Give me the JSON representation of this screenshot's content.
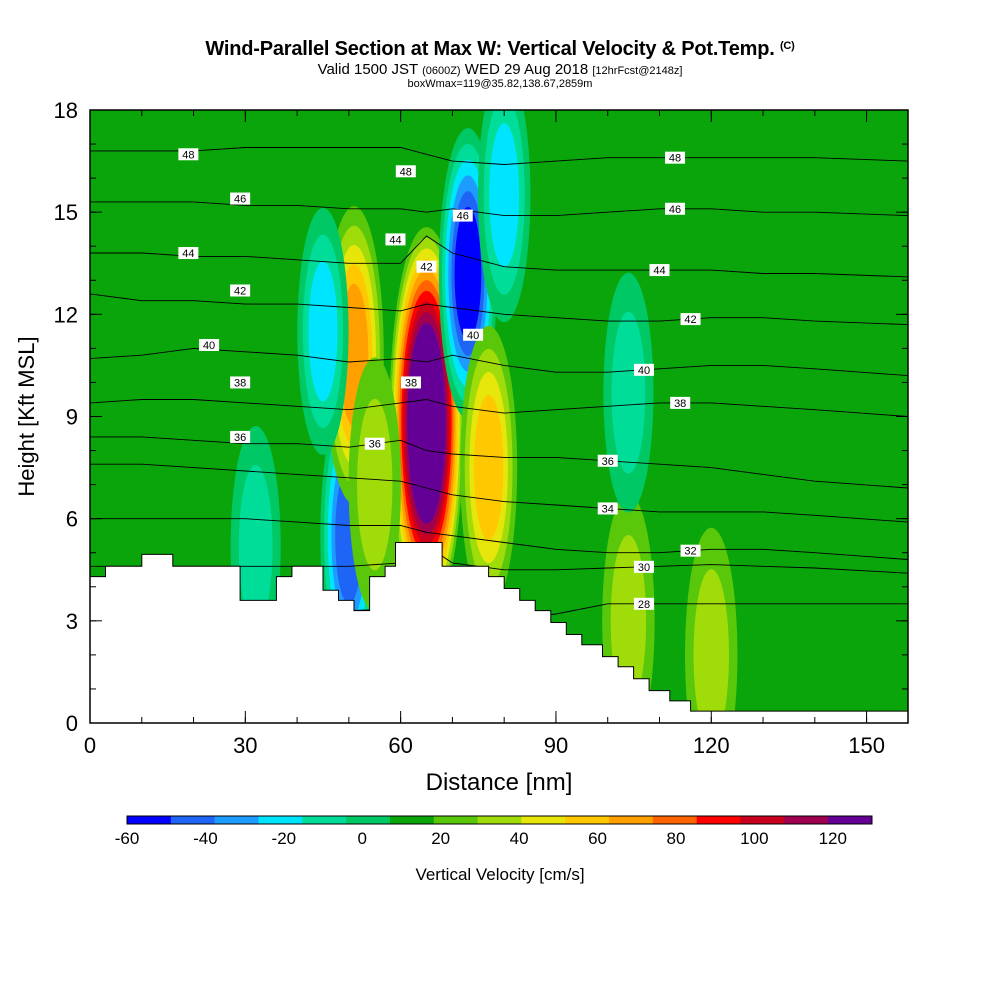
{
  "header": {
    "title": "Wind-Parallel Section at Max W: Vertical Velocity & Pot.Temp.",
    "title_mark": "(C)",
    "subtitle_valid": "Valid 1500 JST",
    "subtitle_utc": "(0600Z)",
    "subtitle_date": "WED 29 Aug 2018",
    "subtitle_fcst": "[12hrFcst@2148z]",
    "subtitle_box": "boxWmax=119@35.82,138.67,2859m"
  },
  "colors": {
    "scale": [
      "#0000ff",
      "#1e64f5",
      "#1e9bff",
      "#00e5ff",
      "#00dd99",
      "#00c864",
      "#0aa50a",
      "#5ac80a",
      "#a0dc0a",
      "#e6e60a",
      "#ffc800",
      "#ffa000",
      "#ff6400",
      "#ff0000",
      "#c8001e",
      "#a00050",
      "#640096"
    ],
    "terrain": "#ffffff",
    "contour": "#000000"
  },
  "chart_data": {
    "type": "heatmap",
    "xlabel": "Distance [nm]",
    "ylabel": "Height [Kft MSL]",
    "xlim": [
      0,
      158
    ],
    "ylim": [
      0,
      18
    ],
    "xticks": [
      "0",
      "30",
      "60",
      "90",
      "120",
      "150"
    ],
    "yticks": [
      "0",
      "3",
      "6",
      "9",
      "12",
      "15",
      "18"
    ],
    "colorbar": {
      "label": "Vertical Velocity [cm/s]",
      "levels": [
        -60,
        -50,
        -40,
        -30,
        -20,
        -10,
        0,
        10,
        20,
        30,
        40,
        50,
        60,
        70,
        80,
        90,
        100,
        110,
        120,
        130
      ],
      "tick_labels": [
        "-60",
        "-40",
        "-20",
        "0",
        "20",
        "40",
        "60",
        "80",
        "100",
        "120"
      ]
    },
    "background_w": 5,
    "w_features": [
      {
        "x": 65,
        "y": 8.8,
        "w": 120
      },
      {
        "x": 73,
        "y": 13.2,
        "w": -50
      },
      {
        "x": 50,
        "y": 5.5,
        "w": -45
      },
      {
        "x": 51,
        "y": 10.8,
        "w": 55
      },
      {
        "x": 77,
        "y": 7.5,
        "w": 45
      },
      {
        "x": 104,
        "y": 3.0,
        "w": 25
      },
      {
        "x": 120,
        "y": 2.0,
        "w": 25
      },
      {
        "x": 104,
        "y": 9.7,
        "w": -15
      },
      {
        "x": 32,
        "y": 5.2,
        "w": -15
      },
      {
        "x": 45,
        "y": 11.5,
        "w": -20
      },
      {
        "x": 55,
        "y": 7.0,
        "w": 25
      },
      {
        "x": 80,
        "y": 15.5,
        "w": -25
      },
      {
        "x": 143,
        "y": 1.0,
        "w": 5
      }
    ],
    "terrain": [
      [
        0,
        4.3
      ],
      [
        3,
        4.3
      ],
      [
        3,
        4.6
      ],
      [
        10,
        4.6
      ],
      [
        10,
        4.95
      ],
      [
        16,
        4.95
      ],
      [
        16,
        4.6
      ],
      [
        29,
        4.6
      ],
      [
        29,
        3.6
      ],
      [
        36,
        3.6
      ],
      [
        36,
        4.3
      ],
      [
        39,
        4.3
      ],
      [
        39,
        4.6
      ],
      [
        45,
        4.6
      ],
      [
        45,
        3.9
      ],
      [
        48,
        3.9
      ],
      [
        48,
        3.6
      ],
      [
        51,
        3.6
      ],
      [
        51,
        3.3
      ],
      [
        54,
        3.3
      ],
      [
        54,
        4.3
      ],
      [
        57,
        4.3
      ],
      [
        57,
        4.6
      ],
      [
        59,
        4.6
      ],
      [
        59,
        5.3
      ],
      [
        68,
        5.3
      ],
      [
        68,
        4.6
      ],
      [
        77,
        4.6
      ],
      [
        77,
        4.3
      ],
      [
        80,
        4.3
      ],
      [
        80,
        3.95
      ],
      [
        83,
        3.95
      ],
      [
        83,
        3.6
      ],
      [
        86,
        3.6
      ],
      [
        86,
        3.3
      ],
      [
        89,
        3.3
      ],
      [
        89,
        2.95
      ],
      [
        92,
        2.95
      ],
      [
        92,
        2.6
      ],
      [
        95,
        2.6
      ],
      [
        95,
        2.3
      ],
      [
        99,
        2.3
      ],
      [
        99,
        1.95
      ],
      [
        102,
        1.95
      ],
      [
        102,
        1.65
      ],
      [
        105,
        1.65
      ],
      [
        105,
        1.3
      ],
      [
        108,
        1.3
      ],
      [
        108,
        0.95
      ],
      [
        112,
        0.95
      ],
      [
        112,
        0.65
      ],
      [
        116,
        0.65
      ],
      [
        116,
        0.35
      ],
      [
        158,
        0.35
      ]
    ],
    "theta_contours": [
      {
        "value": 28,
        "label": "28",
        "label_x": 107,
        "y": [
          3.0,
          3.0,
          3.1,
          3.2,
          3.25,
          3.3,
          3.35,
          3.4,
          3.2,
          3.05,
          3.2,
          3.5,
          3.5,
          3.5,
          3.5,
          3.5,
          3.5
        ]
      },
      {
        "value": 30,
        "label": "30",
        "label_x": 107,
        "y": [
          4.6,
          4.6,
          4.6,
          4.6,
          4.6,
          4.6,
          4.7,
          5.2,
          4.7,
          4.5,
          4.5,
          4.55,
          4.6,
          4.65,
          4.6,
          4.55,
          4.4
        ]
      },
      {
        "value": 32,
        "label": "32",
        "label_x": 116,
        "y": [
          6.0,
          6.0,
          6.0,
          6.0,
          5.9,
          5.8,
          5.8,
          5.6,
          5.5,
          5.3,
          5.1,
          5.0,
          5.0,
          5.1,
          5.1,
          5.0,
          4.8
        ]
      },
      {
        "value": 34,
        "label": "34",
        "label_x": 100,
        "y": [
          7.6,
          7.6,
          7.5,
          7.4,
          7.3,
          7.2,
          7.1,
          6.9,
          6.7,
          6.5,
          6.4,
          6.3,
          6.2,
          6.2,
          6.2,
          6.1,
          5.9
        ]
      },
      {
        "value": 36,
        "label": "36",
        "label_x": 100,
        "y": [
          8.4,
          8.4,
          8.3,
          8.2,
          8.2,
          8.1,
          8.3,
          8.0,
          7.9,
          7.8,
          7.8,
          7.7,
          7.6,
          7.5,
          7.3,
          7.1,
          6.9
        ]
      },
      {
        "value": 38,
        "label": "38",
        "label_x": 114,
        "y": [
          9.4,
          9.5,
          9.5,
          9.4,
          9.3,
          9.2,
          9.4,
          9.5,
          9.3,
          9.1,
          9.2,
          9.3,
          9.4,
          9.4,
          9.3,
          9.2,
          9.0
        ]
      },
      {
        "value": 40,
        "label": "40",
        "label_x": 107,
        "y": [
          10.7,
          10.8,
          11.0,
          10.9,
          10.8,
          10.6,
          10.7,
          10.6,
          10.8,
          10.5,
          10.3,
          10.3,
          10.4,
          10.5,
          10.5,
          10.4,
          10.2
        ]
      },
      {
        "value": 42,
        "label": "42",
        "label_x": 116,
        "y": [
          12.6,
          12.4,
          12.4,
          12.3,
          12.3,
          12.2,
          12.1,
          12.3,
          12.2,
          12.0,
          11.9,
          11.8,
          11.8,
          11.9,
          11.9,
          11.8,
          11.7
        ]
      },
      {
        "value": 44,
        "label": "44",
        "label_x": 110,
        "y": [
          13.8,
          13.8,
          13.7,
          13.7,
          13.6,
          13.5,
          13.5,
          14.3,
          13.8,
          13.4,
          13.3,
          13.3,
          13.3,
          13.3,
          13.2,
          13.2,
          13.1
        ]
      },
      {
        "value": 46,
        "label": "46",
        "label_x": 113,
        "y": [
          15.3,
          15.3,
          15.3,
          15.2,
          15.2,
          15.1,
          15.1,
          15.0,
          15.1,
          14.9,
          14.9,
          15.0,
          15.1,
          15.1,
          15.0,
          15.0,
          14.9
        ]
      },
      {
        "value": 48,
        "label": "48",
        "label_x": 113,
        "y": [
          16.8,
          16.8,
          16.8,
          16.9,
          16.9,
          16.9,
          16.9,
          16.7,
          16.5,
          16.4,
          16.5,
          16.6,
          16.6,
          16.6,
          16.6,
          16.6,
          16.5
        ]
      }
    ],
    "contour_x": [
      0,
      10,
      20,
      30,
      40,
      50,
      60,
      65,
      70,
      80,
      90,
      100,
      110,
      120,
      130,
      140,
      158
    ],
    "left_labels": [
      {
        "value": "48",
        "x": 19,
        "y": 16.7
      },
      {
        "value": "46",
        "x": 29,
        "y": 15.4
      },
      {
        "value": "44",
        "x": 19,
        "y": 13.8
      },
      {
        "value": "42",
        "x": 29,
        "y": 12.7
      },
      {
        "value": "40",
        "x": 23,
        "y": 11.1
      },
      {
        "value": "38",
        "x": 29,
        "y": 10.0
      },
      {
        "value": "36",
        "x": 29,
        "y": 8.4
      },
      {
        "value": "36",
        "x": 55,
        "y": 8.2
      },
      {
        "value": "38",
        "x": 62,
        "y": 10.0
      },
      {
        "value": "40",
        "x": 74,
        "y": 11.4
      },
      {
        "value": "42",
        "x": 65,
        "y": 13.4
      },
      {
        "value": "44",
        "x": 59,
        "y": 14.2
      },
      {
        "value": "46",
        "x": 72,
        "y": 14.9
      },
      {
        "value": "48",
        "x": 61,
        "y": 16.2
      }
    ]
  }
}
